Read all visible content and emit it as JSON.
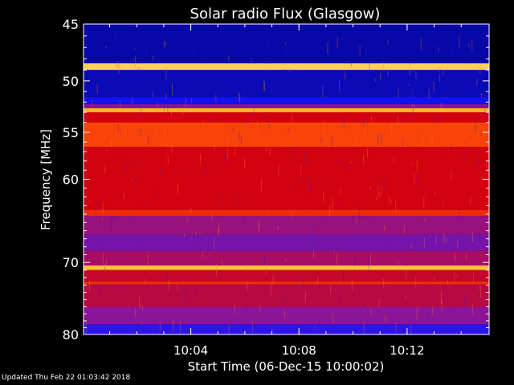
{
  "chart_data": {
    "type": "heatmap",
    "title": "Solar radio Flux (Glasgow)",
    "xlabel": "Start Time (06-Dec-15 10:00:02)",
    "ylabel": "Frequency [MHz]",
    "x_ticks": [
      "10:04",
      "10:08",
      "10:12"
    ],
    "y_ticks": [
      "45",
      "50",
      "55",
      "60",
      "70",
      "80"
    ],
    "ylim": [
      80,
      45
    ],
    "y_scale": "log",
    "colormap": "blue-red-yellow",
    "bands": [
      {
        "freq": [
          45.0,
          48.4
        ],
        "level": 0.08
      },
      {
        "freq": [
          48.4,
          49.0
        ],
        "level": 0.95
      },
      {
        "freq": [
          49.0,
          51.5
        ],
        "level": 0.1
      },
      {
        "freq": [
          51.5,
          52.2
        ],
        "level": 0.18
      },
      {
        "freq": [
          52.2,
          52.6
        ],
        "level": 0.4
      },
      {
        "freq": [
          52.6,
          53.0
        ],
        "level": 0.9
      },
      {
        "freq": [
          53.0,
          54.0
        ],
        "level": 0.58
      },
      {
        "freq": [
          54.0,
          56.5
        ],
        "level": 0.75
      },
      {
        "freq": [
          56.5,
          63.5
        ],
        "level": 0.58
      },
      {
        "freq": [
          63.5,
          64.2
        ],
        "level": 0.7
      },
      {
        "freq": [
          64.2,
          66.5
        ],
        "level": 0.45
      },
      {
        "freq": [
          66.5,
          68.5
        ],
        "level": 0.38
      },
      {
        "freq": [
          68.5,
          70.4
        ],
        "level": 0.48
      },
      {
        "freq": [
          70.4,
          71.0
        ],
        "level": 0.92
      },
      {
        "freq": [
          71.0,
          72.5
        ],
        "level": 0.55
      },
      {
        "freq": [
          72.5,
          72.9
        ],
        "level": 0.7
      },
      {
        "freq": [
          72.9,
          76.0
        ],
        "level": 0.52
      },
      {
        "freq": [
          76.0,
          78.5
        ],
        "level": 0.42
      },
      {
        "freq": [
          78.5,
          80.0
        ],
        "level": 0.25
      }
    ]
  },
  "footer": {
    "updated": "Updated Thu Feb 22 01:03:42 2018"
  }
}
